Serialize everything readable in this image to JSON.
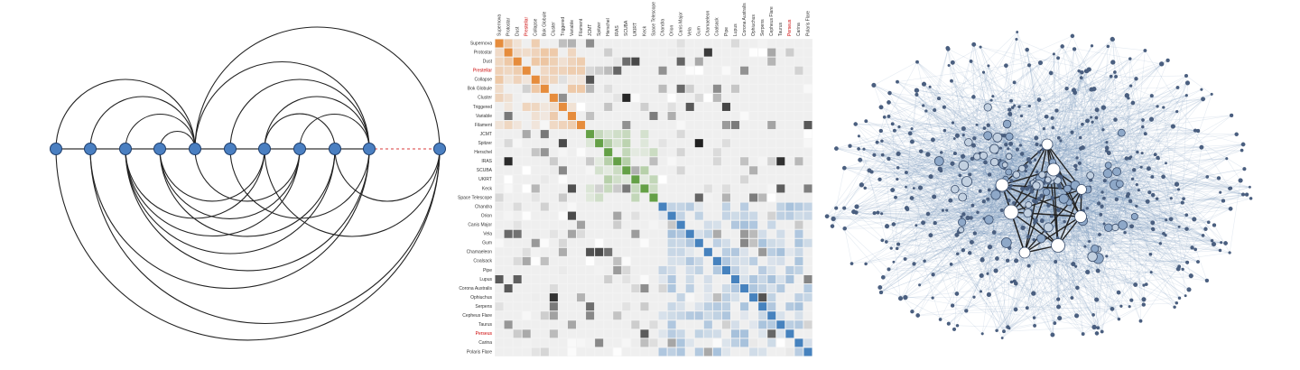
{
  "matrix": {
    "labels": [
      "Supernova",
      "Protostar",
      "Dust",
      "Prestellar",
      "Collapse",
      "Bok Globule",
      "Cluster",
      "Triggered",
      "Variable",
      "Filament",
      "JCMT",
      "Spitzer",
      "Herschel",
      "IRAS",
      "SCUBA",
      "UKIRT",
      "Keck",
      "Space Telescope",
      "Chandra",
      "Orion",
      "Canis Major",
      "Vela",
      "Gum",
      "Chamaeleon",
      "Coalsack",
      "Pipe",
      "Lupus",
      "Corona Australis",
      "Ophiuchus",
      "Serpens",
      "Cepheus Flare",
      "Taurus",
      "Perseus",
      "Carina",
      "Polaris Flare"
    ]
  }
}
